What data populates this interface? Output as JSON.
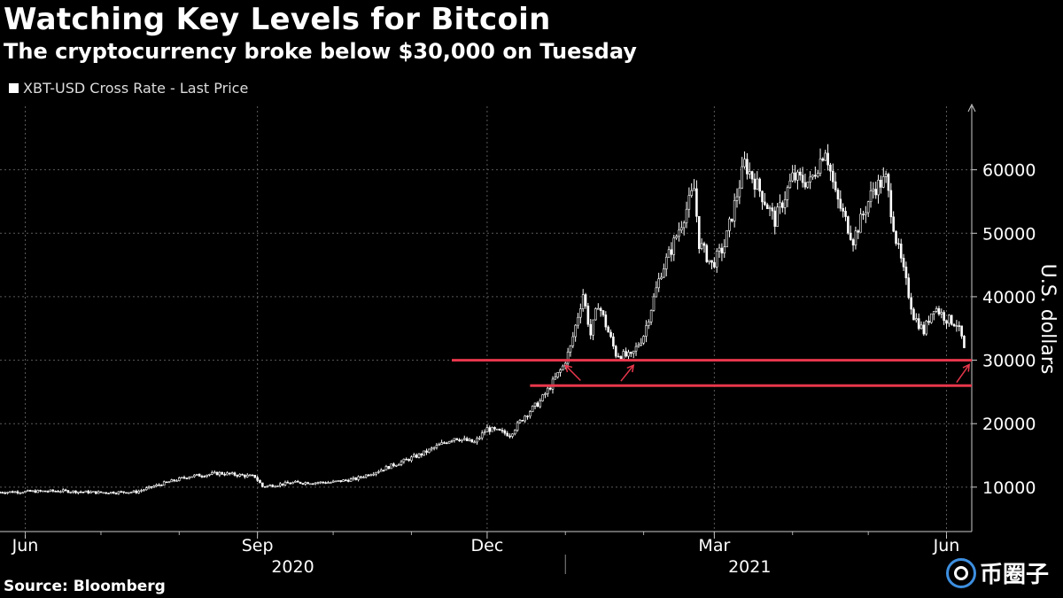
{
  "chart_data": {
    "type": "candlestick",
    "title": "Watching Key Levels for Bitcoin",
    "subtitle": "The cryptocurrency broke below $30,000 on Tuesday",
    "ylabel": "U.S. dollars",
    "legend": {
      "entries": [
        "XBT-USD Cross Rate - Last Price"
      ],
      "placement": "top-left"
    },
    "source": "Source: Bloomberg",
    "ylim": [
      3000,
      70000
    ],
    "y_ticks": [
      10000,
      20000,
      30000,
      40000,
      50000,
      60000
    ],
    "y_tick_labels": [
      "10000",
      "20000",
      "30000",
      "40000",
      "50000",
      "60000"
    ],
    "x_range": [
      "2020-05-22",
      "2021-06-11"
    ],
    "x_month_labels": [
      {
        "label": "Jun",
        "date": "2020-06-01"
      },
      {
        "label": "Sep",
        "date": "2020-09-01"
      },
      {
        "label": "Dec",
        "date": "2020-12-01"
      },
      {
        "label": "Mar",
        "date": "2021-03-01"
      },
      {
        "label": "Jun",
        "date": "2021-06-01"
      }
    ],
    "x_year_labels": [
      {
        "label": "2020",
        "date": "2020-09-15"
      },
      {
        "label": "2021",
        "date": "2021-03-15"
      }
    ],
    "grid": true,
    "series": [
      {
        "points": [
          [
            "2020-05-22",
            9200
          ],
          [
            "2020-06-01",
            9300
          ],
          [
            "2020-06-15",
            9400
          ],
          [
            "2020-06-30",
            9150
          ],
          [
            "2020-07-15",
            9250
          ],
          [
            "2020-07-25",
            10500
          ],
          [
            "2020-08-05",
            11700
          ],
          [
            "2020-08-17",
            12200
          ],
          [
            "2020-08-31",
            11650
          ],
          [
            "2020-09-03",
            10100
          ],
          [
            "2020-09-15",
            10700
          ],
          [
            "2020-09-30",
            10750
          ],
          [
            "2020-10-10",
            11300
          ],
          [
            "2020-10-21",
            12900
          ],
          [
            "2020-11-05",
            15200
          ],
          [
            "2020-11-18",
            17800
          ],
          [
            "2020-11-26",
            17000
          ],
          [
            "2020-12-01",
            19200
          ],
          [
            "2020-12-10",
            18300
          ],
          [
            "2020-12-16",
            21300
          ],
          [
            "2020-12-22",
            23500
          ],
          [
            "2020-12-27",
            26500
          ],
          [
            "2020-12-31",
            29000
          ],
          [
            "2021-01-03",
            32000
          ],
          [
            "2021-01-08",
            40500
          ],
          [
            "2021-01-11",
            34000
          ],
          [
            "2021-01-14",
            39000
          ],
          [
            "2021-01-21",
            31000
          ],
          [
            "2021-01-27",
            30500
          ],
          [
            "2021-02-01",
            34000
          ],
          [
            "2021-02-08",
            44000
          ],
          [
            "2021-02-12",
            47500
          ],
          [
            "2021-02-21",
            57000
          ],
          [
            "2021-02-23",
            48500
          ],
          [
            "2021-02-28",
            45000
          ],
          [
            "2021-03-05",
            48000
          ],
          [
            "2021-03-13",
            61000
          ],
          [
            "2021-03-18",
            57500
          ],
          [
            "2021-03-25",
            52000
          ],
          [
            "2021-04-01",
            58800
          ],
          [
            "2021-04-08",
            58000
          ],
          [
            "2021-04-14",
            63500
          ],
          [
            "2021-04-18",
            56000
          ],
          [
            "2021-04-25",
            49000
          ],
          [
            "2021-05-03",
            57000
          ],
          [
            "2021-05-08",
            58500
          ],
          [
            "2021-05-12",
            49000
          ],
          [
            "2021-05-19",
            37000
          ],
          [
            "2021-05-23",
            34500
          ],
          [
            "2021-05-27",
            38500
          ],
          [
            "2021-06-01",
            36500
          ],
          [
            "2021-06-05",
            35800
          ],
          [
            "2021-06-07",
            33500
          ],
          [
            "2021-06-08",
            31500
          ],
          [
            "2021-06-09",
            30000
          ]
        ]
      }
    ],
    "horizontal_lines": [
      {
        "y": 30000,
        "start": "2020-11-17",
        "end": "2021-06-11",
        "color": "#e8374b"
      },
      {
        "y": 26000,
        "start": "2020-12-18",
        "end": "2021-06-11",
        "color": "#e8374b"
      }
    ],
    "annotations": [
      {
        "type": "arrow",
        "from": [
          "2021-01-07",
          26800
        ],
        "to": [
          "2021-01-01",
          29200
        ],
        "color": "#e8374b"
      },
      {
        "type": "arrow",
        "from": [
          "2021-01-23",
          26700
        ],
        "to": [
          "2021-01-28",
          29200
        ],
        "color": "#e8374b"
      },
      {
        "type": "arrow",
        "from": [
          "2021-06-05",
          26500
        ],
        "to": [
          "2021-06-10",
          29300
        ],
        "color": "#e8374b"
      }
    ]
  },
  "watermark": {
    "text": "币圈子",
    "icon": "coin-logo-icon"
  }
}
